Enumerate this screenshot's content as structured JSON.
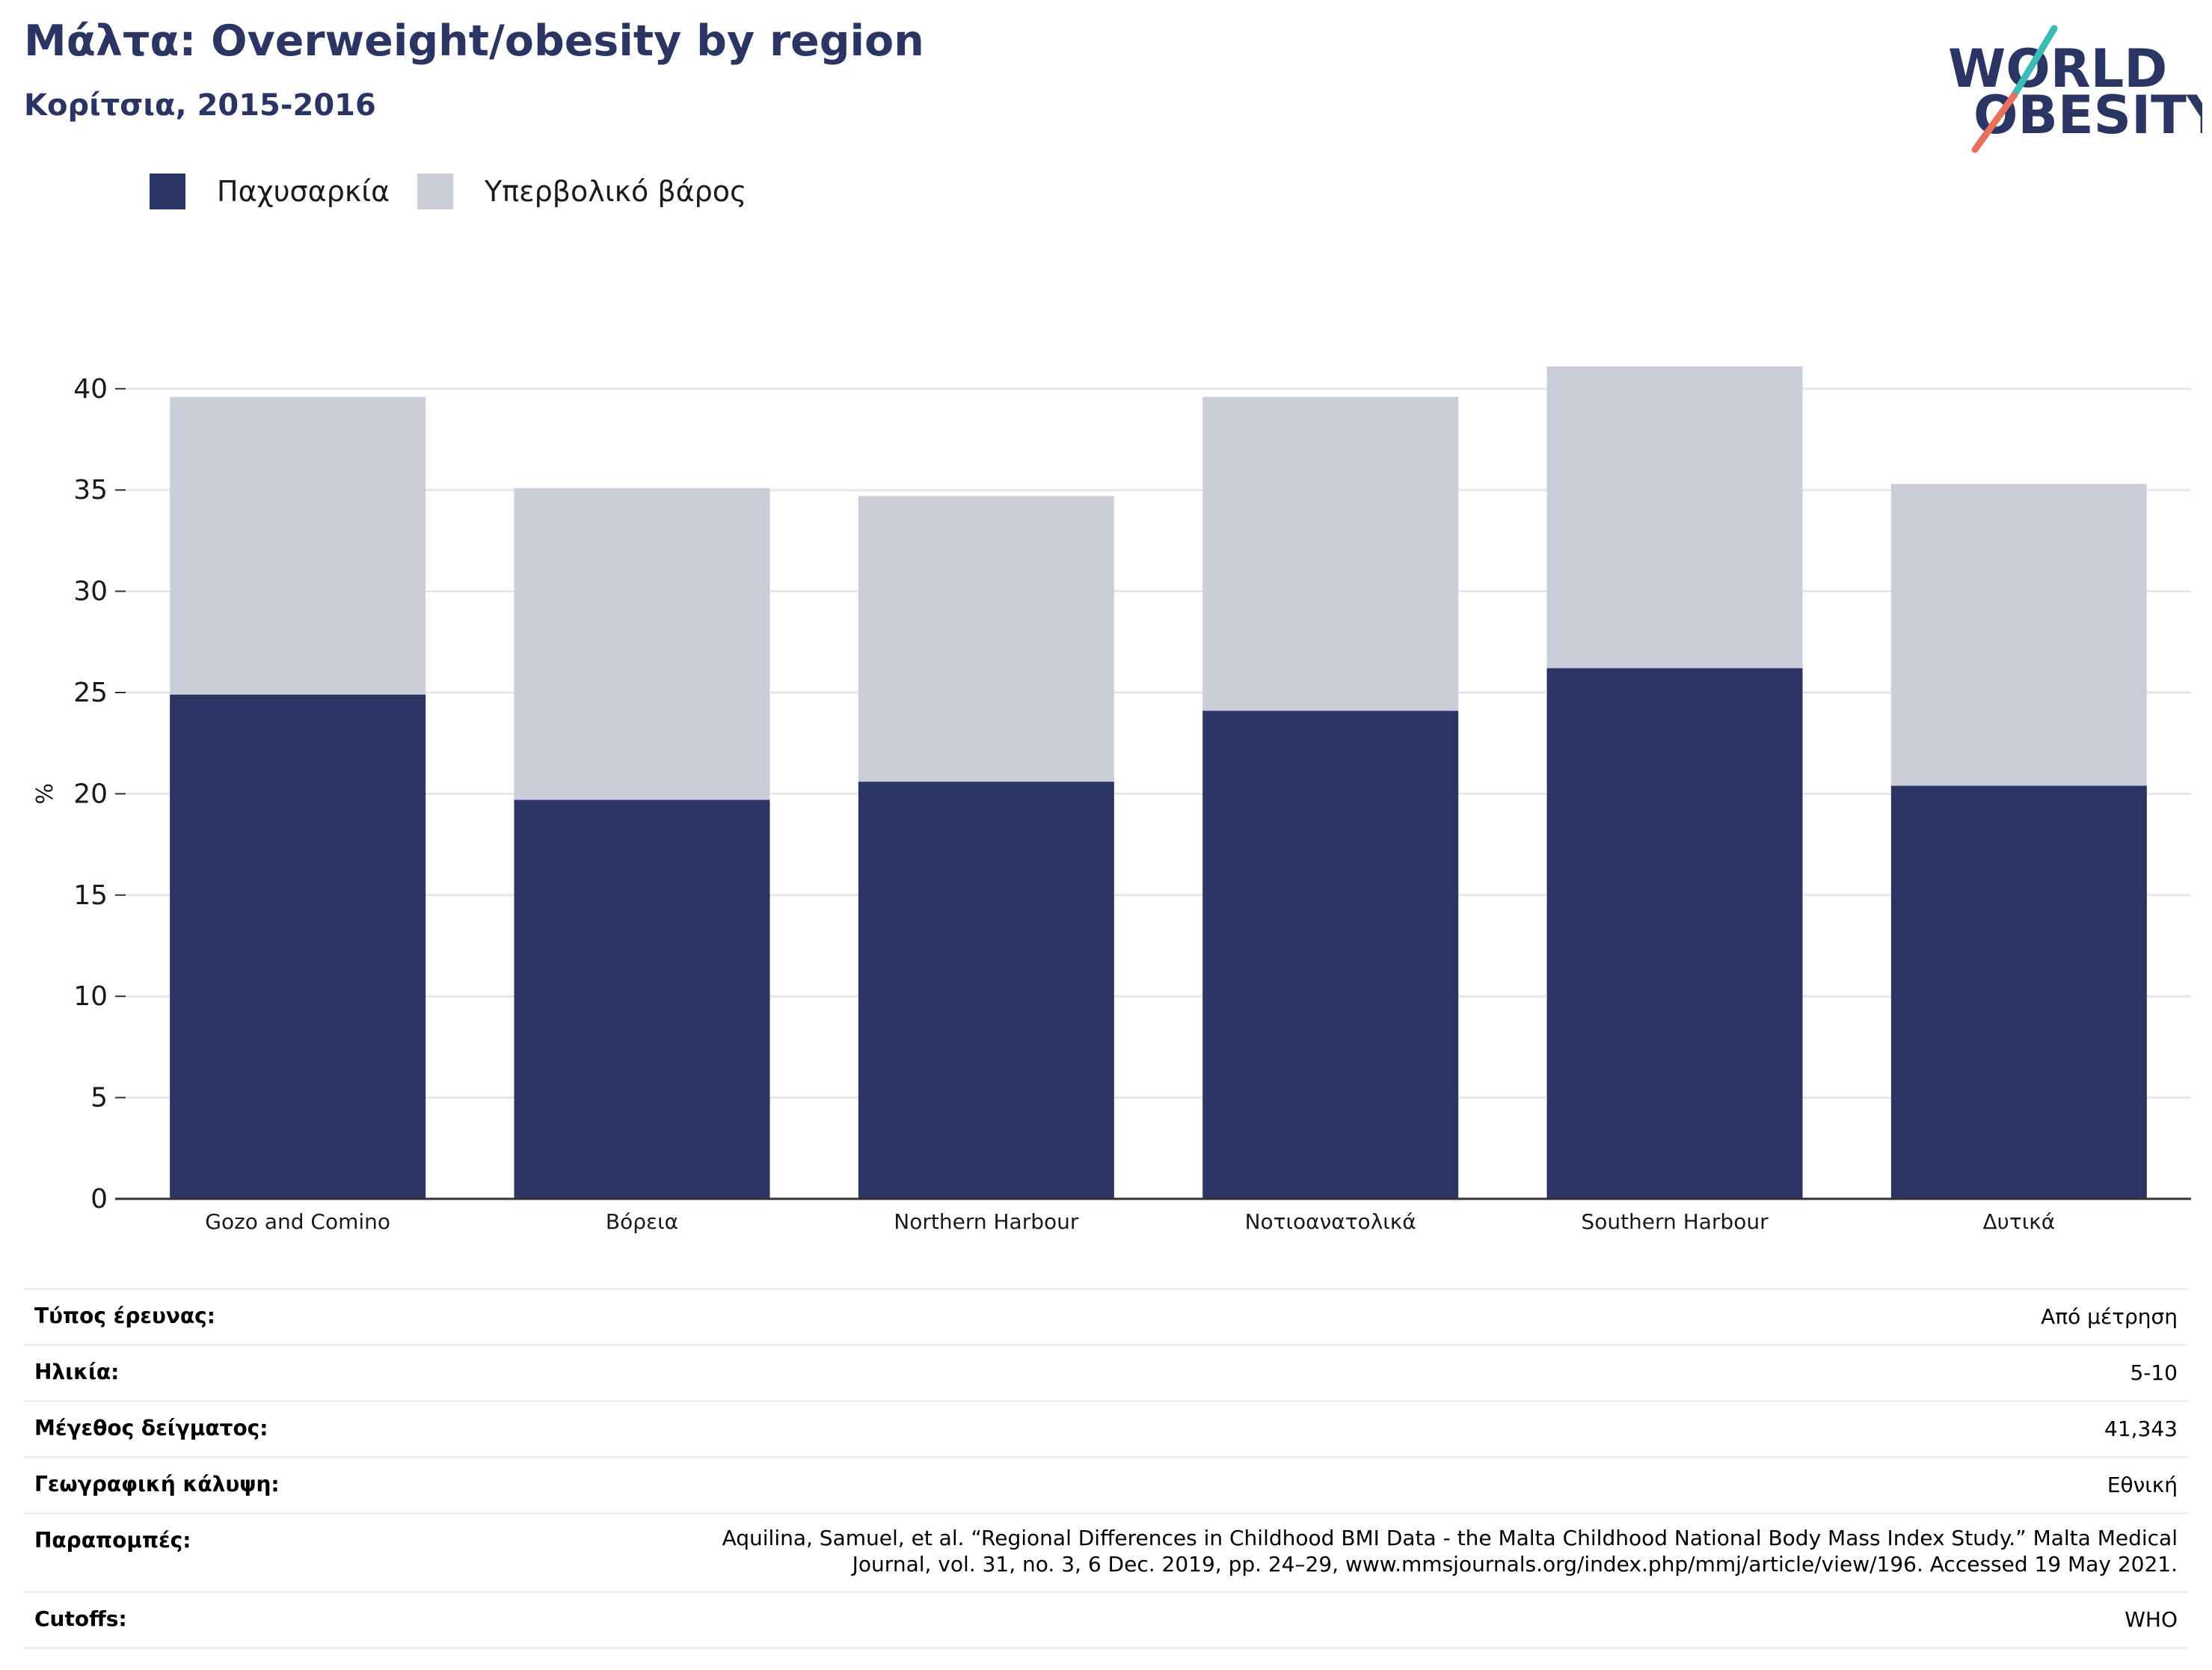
{
  "title": "Μάλτα: Overweight/obesity by region",
  "subtitle": "Κορίτσια, 2015-2016",
  "logo": {
    "line1": "WORLD",
    "line2": "OBESITY",
    "text_color": "#2a3563",
    "slash_teal": "#3bbdb5",
    "slash_coral": "#e8705d"
  },
  "colors": {
    "obesity": "#2a3563",
    "overweight": "#cbcdd9",
    "grid": "#e6e7ec",
    "axis": "#333333"
  },
  "legend": [
    {
      "label": "Παχυσαρκία",
      "color": "#2a3563"
    },
    {
      "label": "Υπερβολικό βάρος",
      "color": "#cbcdd9"
    }
  ],
  "chart_data": {
    "type": "bar",
    "stacked": true,
    "categories": [
      "Gozo and Comino",
      "Βόρεια",
      "Northern Harbour",
      "Νοτιοανατολικά",
      "Southern Harbour",
      "Δυτικά"
    ],
    "series": [
      {
        "name": "Παχυσαρκία",
        "values": [
          24.9,
          19.7,
          20.6,
          24.1,
          26.2,
          20.4
        ]
      },
      {
        "name": "Υπερβολικό βάρος",
        "values": [
          14.7,
          15.4,
          14.1,
          15.5,
          14.9,
          14.9
        ]
      }
    ],
    "totals": [
      39.6,
      35.1,
      34.7,
      39.6,
      41.1,
      35.3
    ],
    "ylabel": "%",
    "xlabel": "",
    "ylim": [
      0,
      40
    ],
    "yticks": [
      0,
      5,
      10,
      15,
      20,
      25,
      30,
      35,
      40
    ],
    "grid": true,
    "legend_position": "top-left"
  },
  "info": [
    {
      "key": "Τύπος έρευνας:",
      "value": "Από μέτρηση"
    },
    {
      "key": "Ηλικία:",
      "value": "5-10"
    },
    {
      "key": "Μέγεθος δείγματος:",
      "value": "41,343"
    },
    {
      "key": "Γεωγραφική κάλυψη:",
      "value": "Εθνική"
    },
    {
      "key": "Παραπομπές:",
      "value_lines": [
        "Aquilina, Samuel, et al. “Regional Differences in Childhood BMI Data - the Malta Childhood National Body Mass Index Study.” Malta Medical",
        "Journal, vol. 31, no. 3, 6 Dec. 2019, pp. 24–29, www.mmsjournals.org/index.php/mmj/article/view/196. Accessed 19 May 2021."
      ]
    },
    {
      "key": "Cutoffs:",
      "value": "WHO"
    }
  ]
}
